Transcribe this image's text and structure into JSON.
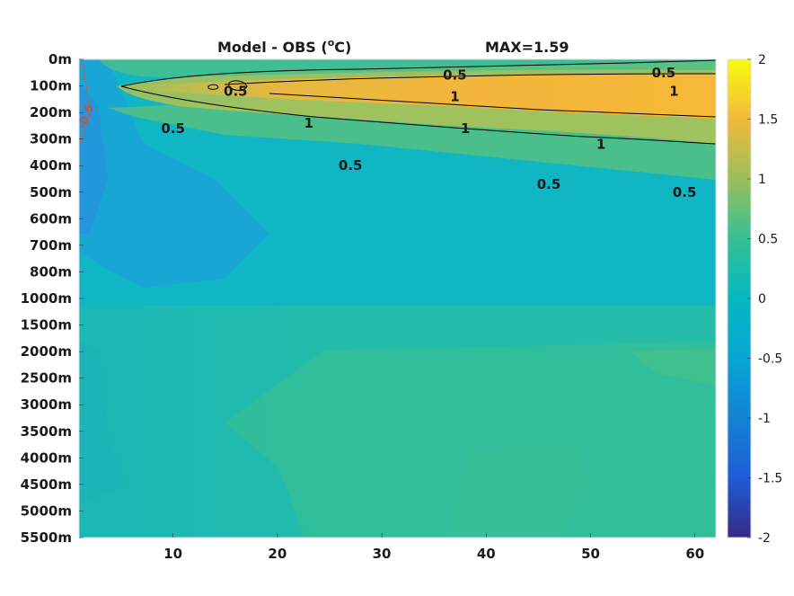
{
  "chart_data": {
    "type": "heatmap",
    "title": "Model - OBS (°C)",
    "title_main": "Model - OBS (",
    "title_sup": "o",
    "title_end": "C)",
    "max_label": "MAX=1.59",
    "x_ticks": [
      10,
      20,
      30,
      40,
      50,
      60
    ],
    "x_range": [
      1,
      62
    ],
    "y_tick_labels": [
      "0m",
      "100m",
      "200m",
      "300m",
      "400m",
      "500m",
      "600m",
      "700m",
      "800m",
      "1000m",
      "1500m",
      "2000m",
      "2500m",
      "3000m",
      "3500m",
      "4000m",
      "4500m",
      "5000m",
      "5500m"
    ],
    "colorbar": {
      "range": [
        -2,
        2
      ],
      "ticks": [
        "2",
        "1.5",
        "1",
        "0.5",
        "0",
        "-0.5",
        "-1",
        "-1.5",
        "-2"
      ],
      "colormap": "parula"
    },
    "contour_labels": [
      {
        "text": "0.5",
        "x": 16,
        "level": 1.2
      },
      {
        "text": "0.5",
        "x": 37,
        "level": 0.6
      },
      {
        "text": "0.5",
        "x": 57,
        "level": 0.5
      },
      {
        "text": "0.5",
        "x": 10,
        "level": 2.6
      },
      {
        "text": "1",
        "x": 23,
        "level": 2.4
      },
      {
        "text": "1",
        "x": 37,
        "level": 1.4
      },
      {
        "text": "1",
        "x": 38,
        "level": 2.6
      },
      {
        "text": "1",
        "x": 51,
        "level": 3.2
      },
      {
        "text": "1",
        "x": 58,
        "level": 1.2
      },
      {
        "text": "0.5",
        "x": 27,
        "level": 4.0
      },
      {
        "text": "0.5",
        "x": 46,
        "level": 4.7
      },
      {
        "text": "0.5",
        "x": 59,
        "level": 5.0
      }
    ],
    "negative_contour_label": {
      "text": "-0.5",
      "x": 2,
      "level": 2.2
    },
    "field_description_values": {
      "upper_band_peak": 1.59,
      "deep_ocean_range": [
        0.1,
        0.3
      ],
      "western_subsurface_min": -0.6
    }
  }
}
